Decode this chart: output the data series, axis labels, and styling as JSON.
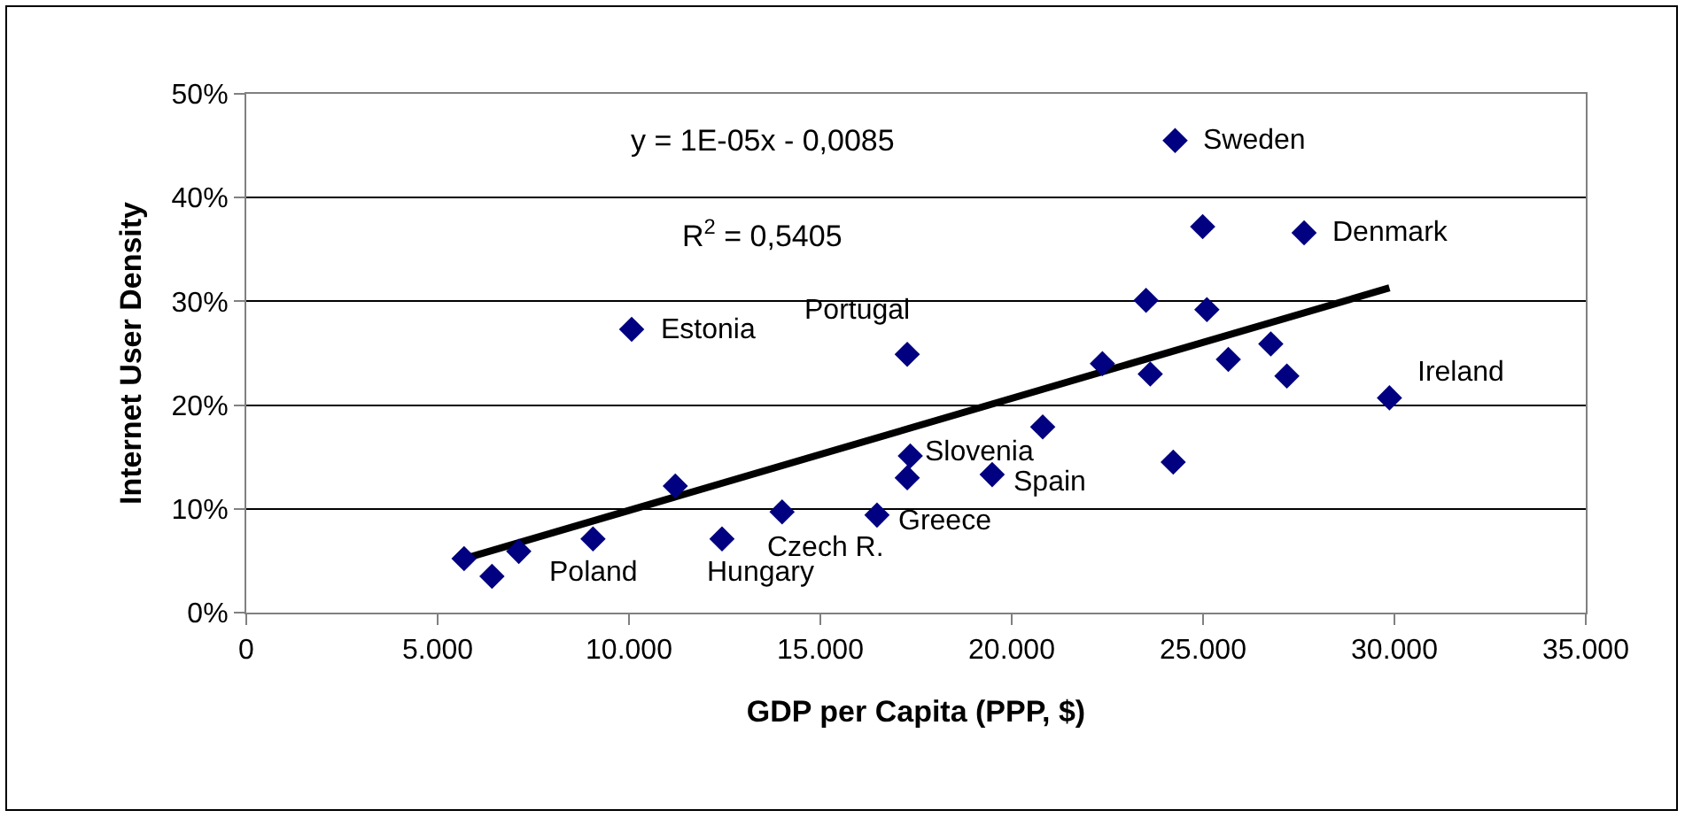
{
  "chart_data": {
    "type": "scatter",
    "xlabel": "GDP per Capita (PPP, $)",
    "ylabel": "Internet User Density",
    "xlim": [
      0,
      35000
    ],
    "xticks": [
      0,
      {
        "value": 5000,
        "label": "5.000"
      },
      {
        "value": 10000,
        "label": "10.000"
      },
      {
        "value": 15000,
        "label": "15.000"
      },
      {
        "value": 20000,
        "label": "20.000"
      },
      {
        "value": 25000,
        "label": "25.000"
      },
      {
        "value": 30000,
        "label": "30.000"
      },
      {
        "value": 35000,
        "label": "35.000"
      }
    ],
    "ylim": [
      0,
      50
    ],
    "yticks": [
      {
        "value": 0,
        "label": "0%"
      },
      {
        "value": 10,
        "label": "10%"
      },
      {
        "value": 20,
        "label": "20%"
      },
      {
        "value": 30,
        "label": "30%"
      },
      {
        "value": 40,
        "label": "40%"
      },
      {
        "value": 50,
        "label": "50%"
      }
    ],
    "grid": "y",
    "marker": "diamond",
    "series": [
      {
        "color": "#000080",
        "x": [
          5690,
          6420,
          7120,
          9060,
          11210,
          12430,
          14000,
          16480,
          17270,
          17350,
          17270,
          10070,
          24270,
          24990,
          27640,
          23510,
          25100,
          22370,
          23620,
          25660,
          26770,
          27190,
          29870,
          20810,
          19490,
          24220
        ],
        "values": [
          5.2,
          3.5,
          5.9,
          7.1,
          12.2,
          7.1,
          9.7,
          9.4,
          13.0,
          15.1,
          24.9,
          27.3,
          45.5,
          37.2,
          36.6,
          30.1,
          29.2,
          24.0,
          23.0,
          24.4,
          25.9,
          22.8,
          20.7,
          17.9,
          13.3,
          14.5
        ]
      },
      {
        "type": "line",
        "color": "#000000",
        "marker": "none",
        "x": [
          5690,
          29870
        ],
        "values": [
          5.2,
          31.3
        ]
      }
    ],
    "annotations": [
      "y = 1E-05x - 0,0085",
      "R$^{2}$ = 0,5405",
      {
        "text": "Sweden",
        "x": 24270,
        "y": 45.5
      },
      {
        "text": "Denmark",
        "x": 27640,
        "y": 36.6
      },
      {
        "text": "Ireland",
        "x": 29870,
        "y": 20.7
      },
      {
        "text": "Estonia",
        "x": 10070,
        "y": 27.3
      },
      {
        "text": "Portugal",
        "x": 17270,
        "y": 24.9
      },
      {
        "text": "Slovenia",
        "x": 17350,
        "y": 15.1
      },
      {
        "text": "Spain",
        "x": 19490,
        "y": 13.3
      },
      {
        "text": "Greece",
        "x": 16480,
        "y": 9.4
      },
      {
        "text": "Czech R.",
        "x": 14000,
        "y": 9.7
      },
      {
        "text": "Poland",
        "x": 9060,
        "y": 7.1
      },
      {
        "text": "Hungary",
        "x": 12430,
        "y": 7.1
      }
    ]
  }
}
